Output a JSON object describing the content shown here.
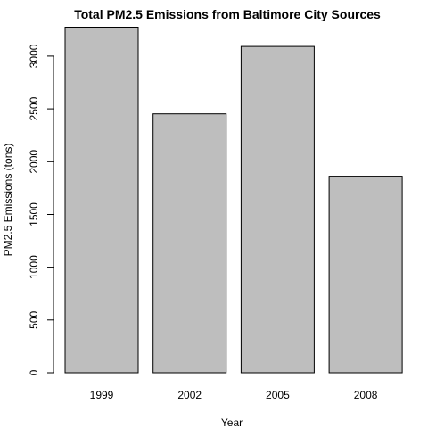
{
  "chart_data": {
    "type": "bar",
    "title": "Total PM2.5 Emissions from Baltimore City Sources",
    "xlabel": "Year",
    "ylabel": "PM2.5 Emissions (tons)",
    "categories": [
      "1999",
      "2002",
      "2005",
      "2008"
    ],
    "values": [
      3274,
      2453,
      3091,
      1862
    ],
    "ylim": [
      0,
      3300
    ],
    "yticks": [
      0,
      500,
      1000,
      1500,
      2000,
      2500,
      3000
    ],
    "grid": false,
    "legend": "none",
    "bar_color": "#bebebe",
    "border_color": "#000000"
  }
}
